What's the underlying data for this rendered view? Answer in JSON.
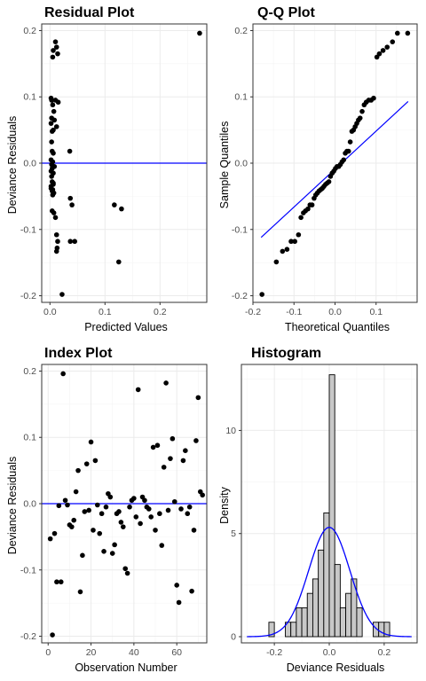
{
  "colors": {
    "points": "#000000",
    "line": "#0000ff",
    "bar_fill": "#c8c8c8",
    "bar_stroke": "#000000",
    "grid": "#ebebeb"
  },
  "chart_data": [
    {
      "id": "residual",
      "type": "scatter",
      "title": "Residual Plot",
      "xlabel": "Predicted Values",
      "ylabel": "Deviance Residuals",
      "xlim": [
        -0.015,
        0.285
      ],
      "ylim": [
        -0.21,
        0.21
      ],
      "xticks": [
        0,
        0.1,
        0.2
      ],
      "xtick_labels": [
        "0.0",
        "0.1",
        "0.2"
      ],
      "yticks": [
        -0.2,
        -0.1,
        0,
        0.1,
        0.2
      ],
      "ytick_labels": [
        "-0.2",
        "-0.1",
        "0.0",
        "0.1",
        "0.2"
      ],
      "hline": 0,
      "x": [
        0.005,
        0.006,
        0.01,
        0.012,
        0.014,
        0.002,
        0.003,
        0.005,
        0.007,
        0.01,
        0.015,
        0.003,
        0.008,
        0.012,
        0.002,
        0.004,
        0.006,
        0.003,
        0.004,
        0.006,
        0.002,
        0.005,
        0.003,
        0.006,
        0.002,
        0.004,
        0.006,
        0.008,
        0.003,
        0.004,
        0.006,
        0.002,
        0.005,
        0.007,
        0.002,
        0.004,
        0.006,
        0.005,
        0.004,
        0.007,
        0.01,
        0.012,
        0.014,
        0.013,
        0.012,
        0.022,
        0.036,
        0.037,
        0.04,
        0.037,
        0.045,
        0.117,
        0.13,
        0.125,
        0.272
      ],
      "y": [
        0.16,
        0.17,
        0.183,
        0.175,
        0.165,
        0.098,
        0.095,
        0.088,
        0.078,
        0.095,
        0.092,
        0.068,
        0.065,
        0.055,
        0.06,
        0.048,
        0.05,
        0.032,
        0.018,
        0.015,
        0.005,
        0.002,
        -0.002,
        -0.005,
        -0.012,
        -0.008,
        -0.015,
        -0.005,
        -0.02,
        -0.028,
        -0.032,
        -0.035,
        -0.04,
        -0.045,
        -0.038,
        -0.042,
        -0.03,
        -0.048,
        -0.072,
        -0.075,
        -0.082,
        -0.108,
        -0.118,
        -0.128,
        -0.133,
        -0.198,
        0.018,
        -0.053,
        -0.063,
        -0.118,
        -0.118,
        -0.063,
        -0.069,
        -0.149,
        0.196
      ]
    },
    {
      "id": "qq",
      "type": "scatter",
      "title": "Q-Q Plot",
      "xlabel": "Theoretical Quantiles",
      "ylabel": "Sample Quantiles",
      "xlim": [
        -0.2,
        0.2
      ],
      "ylim": [
        -0.21,
        0.21
      ],
      "xticks": [
        -0.2,
        -0.1,
        0,
        0.1
      ],
      "xtick_labels": [
        "-0.2",
        "-0.1",
        "0.0",
        "0.1"
      ],
      "yticks": [
        -0.2,
        -0.1,
        0,
        0.1,
        0.2
      ],
      "ytick_labels": [
        "-0.2",
        "-0.1",
        "0.0",
        "0.1",
        "0.2"
      ],
      "reference_line": {
        "x": [
          -0.18,
          0.178
        ],
        "y": [
          -0.112,
          0.093
        ]
      },
      "x": [
        -0.178,
        -0.143,
        -0.128,
        -0.117,
        -0.107,
        -0.098,
        -0.089,
        -0.083,
        -0.077,
        -0.072,
        -0.066,
        -0.061,
        -0.056,
        -0.051,
        -0.047,
        -0.043,
        -0.039,
        -0.035,
        -0.031,
        -0.027,
        -0.023,
        -0.019,
        -0.015,
        -0.011,
        -0.007,
        -0.003,
        0.001,
        0.005,
        0.009,
        0.013,
        0.017,
        0.021,
        0.025,
        0.029,
        0.033,
        0.037,
        0.041,
        0.045,
        0.049,
        0.053,
        0.057,
        0.061,
        0.066,
        0.071,
        0.076,
        0.082,
        0.088,
        0.094,
        0.102,
        0.108,
        0.117,
        0.127,
        0.14,
        0.152,
        0.177
      ],
      "y": [
        -0.198,
        -0.149,
        -0.133,
        -0.13,
        -0.118,
        -0.118,
        -0.108,
        -0.082,
        -0.075,
        -0.072,
        -0.069,
        -0.063,
        -0.063,
        -0.053,
        -0.048,
        -0.045,
        -0.042,
        -0.04,
        -0.038,
        -0.035,
        -0.032,
        -0.03,
        -0.028,
        -0.02,
        -0.015,
        -0.012,
        -0.008,
        -0.005,
        -0.005,
        -0.002,
        0.002,
        0.005,
        0.015,
        0.018,
        0.018,
        0.032,
        0.048,
        0.05,
        0.055,
        0.06,
        0.065,
        0.068,
        0.078,
        0.088,
        0.092,
        0.095,
        0.095,
        0.098,
        0.16,
        0.165,
        0.17,
        0.175,
        0.183,
        0.196,
        0.196
      ]
    },
    {
      "id": "index",
      "type": "scatter",
      "title": "Index Plot",
      "xlabel": "Observation Number",
      "ylabel": "Deviance Residuals",
      "xlim": [
        -3,
        74
      ],
      "ylim": [
        -0.21,
        0.21
      ],
      "xticks": [
        0,
        20,
        40,
        60
      ],
      "xtick_labels": [
        "0",
        "20",
        "40",
        "60"
      ],
      "yticks": [
        -0.2,
        -0.1,
        0,
        0.1,
        0.2
      ],
      "ytick_labels": [
        "-0.2",
        "-0.1",
        "0.0",
        "0.1",
        "0.2"
      ],
      "hline": 0,
      "x": [
        1,
        2,
        3,
        4,
        5,
        6,
        7,
        8,
        9,
        10,
        11,
        12,
        13,
        14,
        15,
        16,
        17,
        18,
        19,
        20,
        21,
        22,
        23,
        24,
        25,
        26,
        27,
        28,
        29,
        30,
        31,
        32,
        33,
        34,
        35,
        36,
        37,
        38,
        39,
        40,
        41,
        42,
        43,
        44,
        45,
        46,
        47,
        48,
        49,
        50,
        51,
        52,
        53,
        54,
        55,
        56,
        57,
        58,
        59,
        60,
        61,
        62,
        63,
        64,
        65,
        66,
        67,
        68,
        69,
        70,
        71,
        72
      ],
      "y": [
        -0.053,
        -0.198,
        -0.045,
        -0.118,
        -0.003,
        -0.118,
        0.196,
        0.005,
        -0.002,
        -0.032,
        -0.035,
        -0.025,
        0.018,
        0.05,
        -0.133,
        -0.078,
        -0.012,
        0.06,
        -0.01,
        0.093,
        -0.04,
        0.065,
        -0.002,
        -0.045,
        -0.015,
        -0.072,
        -0.005,
        0.015,
        0.01,
        -0.075,
        -0.062,
        -0.015,
        -0.012,
        -0.028,
        -0.035,
        -0.098,
        -0.105,
        -0.005,
        0.005,
        0.008,
        -0.02,
        0.172,
        -0.03,
        0.01,
        0.005,
        -0.005,
        -0.008,
        -0.02,
        0.085,
        -0.04,
        0.088,
        -0.015,
        -0.063,
        0.055,
        0.182,
        -0.01,
        0.068,
        0.098,
        0.003,
        -0.123,
        -0.149,
        -0.008,
        0.065,
        0.08,
        -0.015,
        -0.005,
        -0.132,
        -0.04,
        0.095,
        0.16,
        0.018,
        0.013
      ]
    },
    {
      "id": "histogram",
      "type": "bar",
      "title": "Histogram",
      "xlabel": "Deviance Residuals",
      "ylabel": "Density",
      "xlim": [
        -0.32,
        0.32
      ],
      "ylim": [
        -0.3,
        13.2
      ],
      "xticks": [
        -0.2,
        0,
        0.2
      ],
      "xtick_labels": [
        "-0.2",
        "0.0",
        "0.2"
      ],
      "yticks": [
        0,
        5,
        10
      ],
      "ytick_labels": [
        "0",
        "5",
        "10"
      ],
      "bin_width": 0.02,
      "bin_starts": [
        -0.22,
        -0.2,
        -0.18,
        -0.16,
        -0.14,
        -0.12,
        -0.1,
        -0.08,
        -0.06,
        -0.04,
        -0.02,
        0.0,
        0.02,
        0.04,
        0.06,
        0.08,
        0.1,
        0.12,
        0.14,
        0.16,
        0.18,
        0.2,
        0.22
      ],
      "density": [
        0.7,
        0,
        0,
        0.7,
        0.7,
        1.4,
        1.4,
        2.1,
        2.8,
        4.2,
        6.0,
        12.7,
        3.5,
        1.4,
        2.1,
        2.8,
        1.4,
        0,
        0,
        0.7,
        0.7,
        0.7,
        0
      ],
      "normal_curve": {
        "mean": 0.0,
        "sd": 0.075,
        "peak": 5.3
      }
    }
  ]
}
